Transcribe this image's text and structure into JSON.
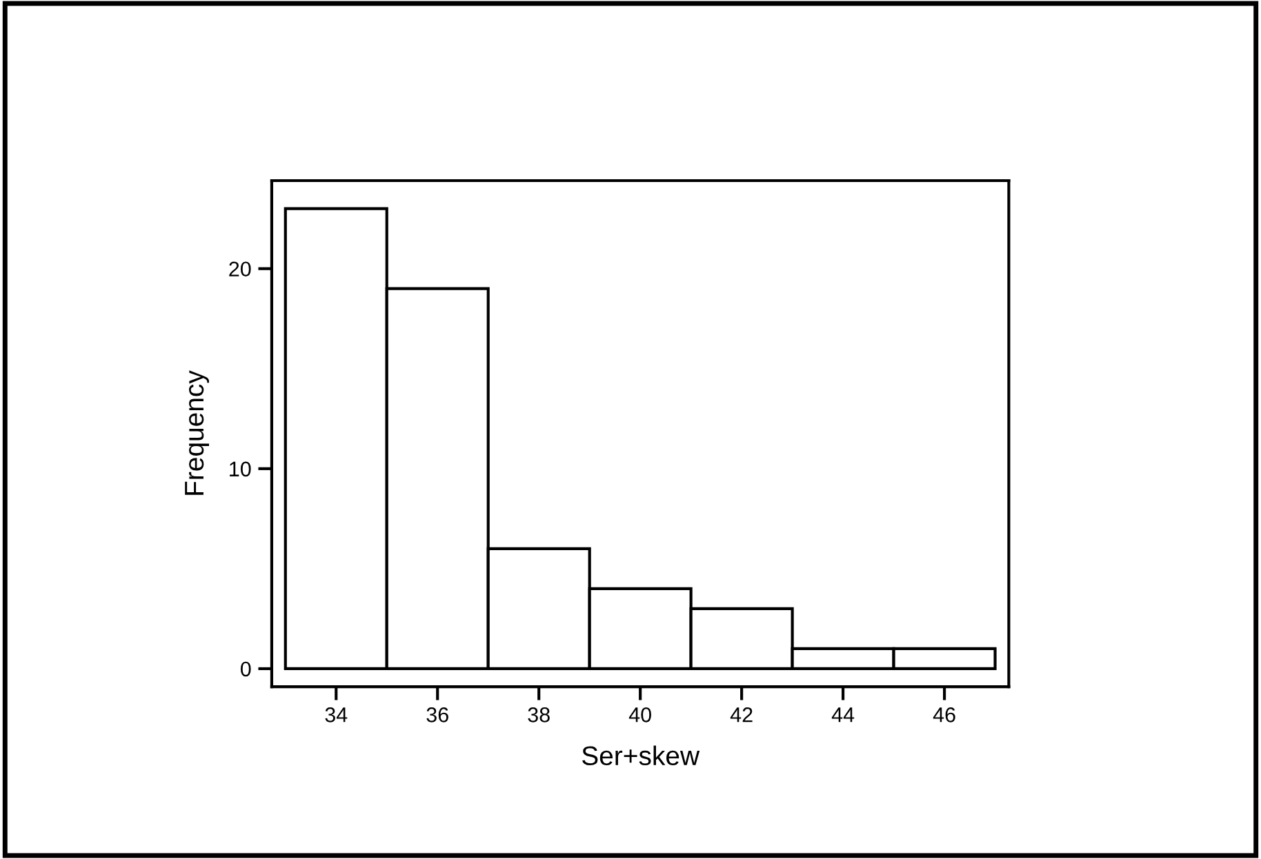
{
  "chart_data": {
    "type": "histogram",
    "xlabel": "Ser+skew",
    "ylabel": "Frequency",
    "bins": [
      33,
      35,
      37,
      39,
      41,
      43,
      45,
      47
    ],
    "values": [
      23,
      19,
      6,
      4,
      3,
      1,
      1
    ],
    "color": "#ffffff",
    "xlim": [
      32.73,
      47.27
    ],
    "ylim": [
      -0.9,
      24.4
    ],
    "xticks": [
      34,
      36,
      38,
      40,
      42,
      44,
      46
    ],
    "yticks": [
      0,
      10,
      20
    ],
    "grid": false
  }
}
